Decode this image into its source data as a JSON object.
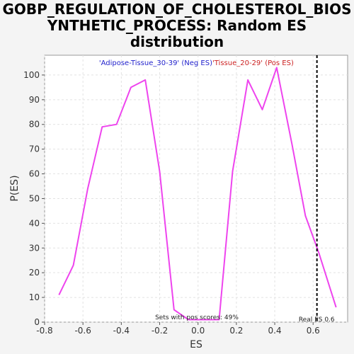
{
  "chart_data": {
    "type": "line",
    "title_lines": [
      "GOBP_REGULATION_OF_CHOLESTEROL_BIOS",
      "YNTHETIC_PROCESS: Random ES",
      "distribution"
    ],
    "xlabel": "ES",
    "ylabel": "P(ES)",
    "xlim": [
      -0.8,
      0.78
    ],
    "ylim": [
      0,
      108
    ],
    "xticks": [
      -0.8,
      -0.6,
      -0.4,
      -0.2,
      0.0,
      0.2,
      0.4,
      0.6
    ],
    "xtick_labels": [
      "-0.8",
      "-0.6",
      "-0.4",
      "-0.2",
      "0.0",
      "0.2",
      "0.4",
      "0.6"
    ],
    "yticks": [
      0,
      10,
      20,
      30,
      40,
      50,
      60,
      70,
      80,
      90,
      100
    ],
    "ytick_labels": [
      "0",
      "10",
      "20",
      "30",
      "40",
      "50",
      "60",
      "70",
      "80",
      "90",
      "100"
    ],
    "grid": true,
    "line_color": "#ee44ee",
    "series": [
      {
        "x": [
          -0.725,
          -0.65,
          -0.575,
          -0.5,
          -0.425,
          -0.35,
          -0.275,
          -0.2,
          -0.125,
          -0.05,
          0.03,
          0.11,
          0.18,
          0.26,
          0.335,
          0.41,
          0.49,
          0.56,
          0.63,
          0.72
        ],
        "y": [
          11,
          23,
          54,
          79,
          80,
          95,
          98,
          61,
          5,
          1,
          1,
          1,
          61,
          98,
          86,
          103,
          72,
          43,
          28,
          6
        ]
      }
    ],
    "real_es": 0.62,
    "real_es_label": "Real ES 0.6",
    "legend": [
      {
        "label": "'Adipose-Tissue_30-39' (Neg ES)",
        "color": "#2222cc"
      },
      {
        "label": "'Tissue_20-29' (Pos ES)",
        "color": "#cc2222"
      }
    ],
    "annotation": "Sets with pos scores: 49%"
  }
}
